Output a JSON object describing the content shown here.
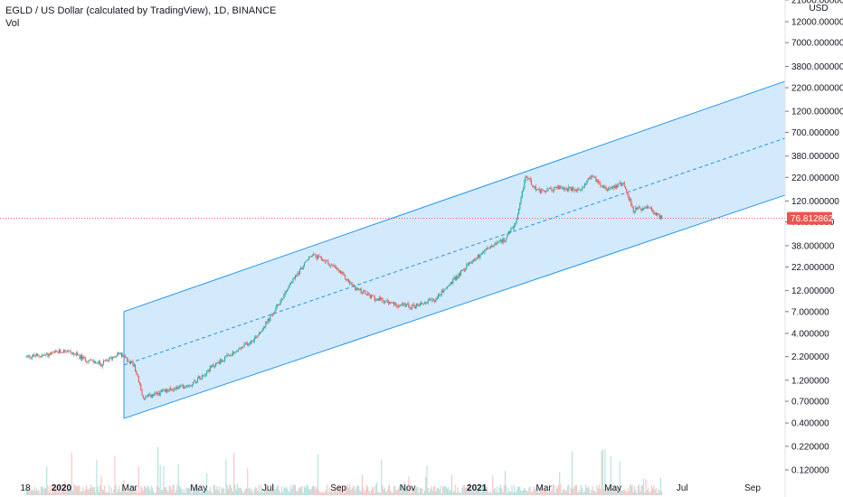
{
  "header": {
    "title": "EGLD / US Dollar (calculated by TradingView), 1D, BINANCE",
    "volume_label": "Vol"
  },
  "chart_data": {
    "type": "candlestick",
    "scale": "log",
    "y_unit_label": "USD",
    "price_ticks": [
      21000,
      12000,
      7000,
      3800,
      2200,
      1200,
      700,
      380,
      220,
      120,
      70,
      38,
      22,
      12,
      7,
      4,
      2.2,
      1.2,
      0.7,
      0.4,
      0.22,
      0.12
    ],
    "price_tick_labels": [
      "21000.000000",
      "12000.000000",
      "7000.000000",
      "3800.000000",
      "2200.000000",
      "1200.000000",
      "700.000000",
      "380.000000",
      "220.000000",
      "120.000000",
      "70.000000",
      "38.000000",
      "22.000000",
      "12.000000",
      "7.000000",
      "4.000000",
      "2.200000",
      "1.200000",
      "0.700000",
      "0.400000",
      "0.220000",
      "0.120000"
    ],
    "time_labels": [
      "18",
      "2020",
      "Mar",
      "May",
      "Jul",
      "Sep",
      "Nov",
      "2021",
      "Mar",
      "May",
      "Jul",
      "Sep"
    ],
    "time_label_x_dates": [
      "2019-12-18",
      "2020-01-01",
      "2020-03-01",
      "2020-05-01",
      "2020-07-01",
      "2020-09-01",
      "2020-11-01",
      "2021-01-01",
      "2021-03-01",
      "2021-05-01",
      "2021-07-01",
      "2021-09-01"
    ],
    "last_price": 76.812862,
    "last_price_label": "76.812862",
    "price_path": [
      {
        "date": "2019-12-01",
        "price": 2.2
      },
      {
        "date": "2019-12-20",
        "price": 2.3
      },
      {
        "date": "2020-01-05",
        "price": 2.6
      },
      {
        "date": "2020-01-20",
        "price": 2.1
      },
      {
        "date": "2020-02-05",
        "price": 1.8
      },
      {
        "date": "2020-02-20",
        "price": 2.4
      },
      {
        "date": "2020-03-05",
        "price": 1.8
      },
      {
        "date": "2020-03-13",
        "price": 0.75
      },
      {
        "date": "2020-04-01",
        "price": 0.9
      },
      {
        "date": "2020-04-25",
        "price": 1.1
      },
      {
        "date": "2020-05-15",
        "price": 1.8
      },
      {
        "date": "2020-06-01",
        "price": 2.4
      },
      {
        "date": "2020-06-20",
        "price": 3.6
      },
      {
        "date": "2020-07-05",
        "price": 6.5
      },
      {
        "date": "2020-07-20",
        "price": 14
      },
      {
        "date": "2020-08-08",
        "price": 30
      },
      {
        "date": "2020-08-20",
        "price": 26
      },
      {
        "date": "2020-09-01",
        "price": 20
      },
      {
        "date": "2020-09-15",
        "price": 13
      },
      {
        "date": "2020-10-01",
        "price": 10
      },
      {
        "date": "2020-10-20",
        "price": 8.5
      },
      {
        "date": "2020-11-05",
        "price": 8
      },
      {
        "date": "2020-11-25",
        "price": 9.5
      },
      {
        "date": "2020-12-10",
        "price": 15
      },
      {
        "date": "2020-12-25",
        "price": 24
      },
      {
        "date": "2021-01-10",
        "price": 35
      },
      {
        "date": "2021-01-25",
        "price": 44
      },
      {
        "date": "2021-02-05",
        "price": 70
      },
      {
        "date": "2021-02-13",
        "price": 230
      },
      {
        "date": "2021-02-25",
        "price": 150
      },
      {
        "date": "2021-03-15",
        "price": 170
      },
      {
        "date": "2021-04-01",
        "price": 155
      },
      {
        "date": "2021-04-12",
        "price": 230
      },
      {
        "date": "2021-04-25",
        "price": 165
      },
      {
        "date": "2021-05-10",
        "price": 190
      },
      {
        "date": "2021-05-19",
        "price": 95
      },
      {
        "date": "2021-06-01",
        "price": 100
      },
      {
        "date": "2021-06-13",
        "price": 76.812862
      }
    ],
    "channel": {
      "start": {
        "date": "2020-02-25",
        "upper": 7,
        "lower": 0.45
      },
      "end": {
        "date": "2021-10-07",
        "upper": 2800,
        "lower": 150
      }
    },
    "colors": {
      "up": "#26a69a",
      "down": "#ef5350",
      "channel_line": "#2196f3",
      "channel_fill": "#bbdefb",
      "last_price": "#ef5350"
    }
  }
}
